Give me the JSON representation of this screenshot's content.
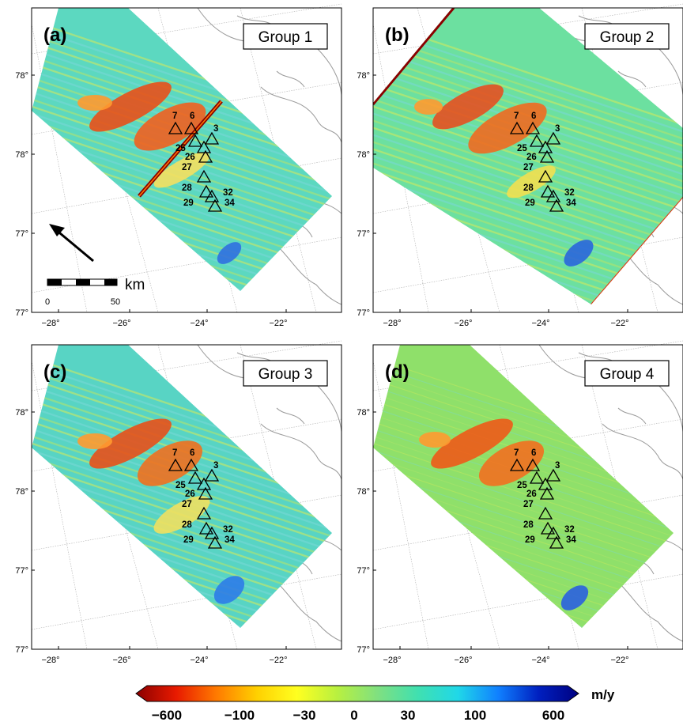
{
  "panels": [
    {
      "letter": "(a)",
      "group": "Group 1",
      "artifact": "stripe",
      "show_arrow": true,
      "show_scalebar": true,
      "bg": "a"
    },
    {
      "letter": "(b)",
      "group": "Group 2",
      "artifact": "edge",
      "show_arrow": false,
      "show_scalebar": false,
      "bg": "b"
    },
    {
      "letter": "(c)",
      "group": "Group 3",
      "artifact": "none",
      "show_arrow": false,
      "show_scalebar": false,
      "bg": "c"
    },
    {
      "letter": "(d)",
      "group": "Group 4",
      "artifact": "none",
      "show_arrow": false,
      "show_scalebar": false,
      "bg": "d"
    }
  ],
  "axes": {
    "lat_labels": [
      "78°",
      "78°",
      "77°",
      "77°"
    ],
    "lon_labels": [
      "−28°",
      "−26°",
      "−24°",
      "−22°"
    ]
  },
  "sites": [
    {
      "id": "7",
      "label": "7"
    },
    {
      "id": "6",
      "label": "6"
    },
    {
      "id": "3",
      "label": "3"
    },
    {
      "id": "25",
      "label": "25"
    },
    {
      "id": "26",
      "label": "26"
    },
    {
      "id": "27",
      "label": "27"
    },
    {
      "id": "28",
      "label": "28"
    },
    {
      "id": "29",
      "label": "29"
    },
    {
      "id": "32",
      "label": "32"
    },
    {
      "id": "34",
      "label": "34"
    }
  ],
  "scalebar": {
    "unit": "km",
    "start": "0",
    "end": "50"
  },
  "colorbar": {
    "unit": "m/y",
    "ticks": [
      "−600",
      "−100",
      "−30",
      "0",
      "30",
      "100",
      "600"
    ],
    "colors": [
      "#8b0000",
      "#e81a00",
      "#ff7a00",
      "#ffd000",
      "#ffff20",
      "#b8f040",
      "#80e080",
      "#40e0b0",
      "#20d8e8",
      "#1080ff",
      "#0020c0",
      "#000080"
    ]
  }
}
